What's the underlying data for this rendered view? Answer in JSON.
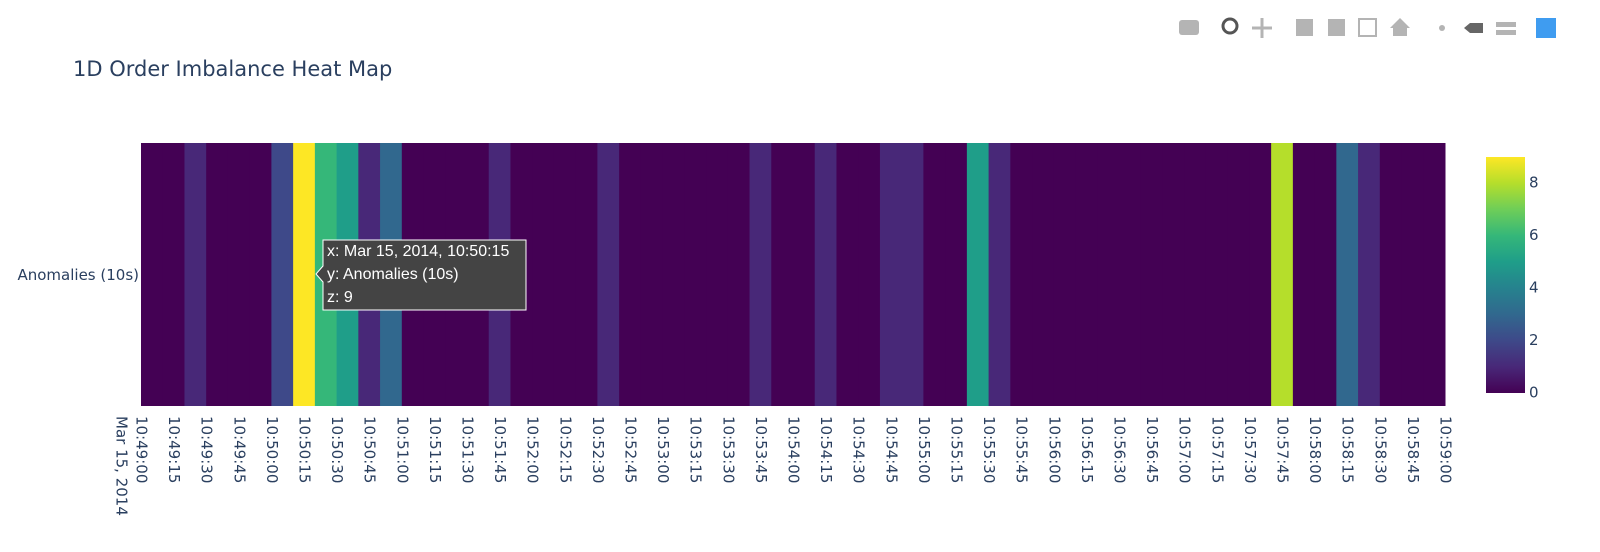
{
  "chart_data": {
    "type": "heatmap",
    "title": "1D Order Imbalance Heat Map",
    "y": [
      "Anomalies (10s)"
    ],
    "x": [
      "10:49:05",
      "10:49:15",
      "10:49:25",
      "10:49:35",
      "10:49:45",
      "10:49:55",
      "10:50:05",
      "10:50:15",
      "10:50:25",
      "10:50:35",
      "10:50:45",
      "10:50:55",
      "10:51:05",
      "10:51:15",
      "10:51:25",
      "10:51:35",
      "10:51:45",
      "10:51:55",
      "10:52:05",
      "10:52:15",
      "10:52:25",
      "10:52:35",
      "10:52:45",
      "10:52:55",
      "10:53:05",
      "10:53:15",
      "10:53:25",
      "10:53:35",
      "10:53:45",
      "10:53:55",
      "10:54:05",
      "10:54:15",
      "10:54:25",
      "10:54:35",
      "10:54:45",
      "10:54:55",
      "10:55:05",
      "10:55:15",
      "10:55:25",
      "10:55:35",
      "10:55:45",
      "10:55:55",
      "10:56:05",
      "10:56:15",
      "10:56:25",
      "10:56:35",
      "10:56:45",
      "10:56:55",
      "10:57:05",
      "10:57:15",
      "10:57:25",
      "10:57:35",
      "10:57:45",
      "10:57:55",
      "10:58:05",
      "10:58:15",
      "10:58:25",
      "10:58:35",
      "10:58:45",
      "10:58:55"
    ],
    "z": [
      [
        0,
        0,
        1,
        0,
        0,
        0,
        2,
        9,
        6,
        5,
        1,
        3,
        0,
        0,
        0,
        0,
        1,
        0,
        0,
        0,
        0,
        1,
        0,
        0,
        0,
        0,
        0,
        0,
        1,
        0,
        0,
        1,
        0,
        0,
        1,
        1,
        0,
        0,
        5,
        1,
        0,
        0,
        0,
        0,
        0,
        0,
        0,
        0,
        0,
        0,
        0,
        0,
        8,
        0,
        0,
        3,
        1,
        0,
        0,
        0
      ]
    ],
    "x_date": "Mar 15, 2014",
    "xlim": [
      "10:49:00",
      "10:59:00"
    ],
    "xticks": [
      "10:49:00",
      "10:49:15",
      "10:49:30",
      "10:49:45",
      "10:50:00",
      "10:50:15",
      "10:50:30",
      "10:50:45",
      "10:51:00",
      "10:51:15",
      "10:51:30",
      "10:51:45",
      "10:52:00",
      "10:52:15",
      "10:52:30",
      "10:52:45",
      "10:53:00",
      "10:53:15",
      "10:53:30",
      "10:53:45",
      "10:54:00",
      "10:54:15",
      "10:54:30",
      "10:54:45",
      "10:55:00",
      "10:55:15",
      "10:55:30",
      "10:55:45",
      "10:56:00",
      "10:56:15",
      "10:56:30",
      "10:56:45",
      "10:57:00",
      "10:57:15",
      "10:57:30",
      "10:57:45",
      "10:58:00",
      "10:58:15",
      "10:58:30",
      "10:58:45",
      "10:59:00"
    ],
    "zlim": [
      0,
      9
    ],
    "zticks": [
      0,
      2,
      4,
      6,
      8
    ],
    "colorscale": [
      [
        0,
        "#440154"
      ],
      [
        0.111,
        "#482878"
      ],
      [
        0.222,
        "#3e4989"
      ],
      [
        0.333,
        "#31688e"
      ],
      [
        0.444,
        "#26828e"
      ],
      [
        0.556,
        "#1f9e89"
      ],
      [
        0.667,
        "#35b779"
      ],
      [
        0.778,
        "#6ece58"
      ],
      [
        0.889,
        "#b5de2b"
      ],
      [
        1,
        "#fde725"
      ]
    ],
    "hover": [
      "x: Mar 15, 2014, 10:50:15",
      "y: Anomalies (10s)",
      "z: 9"
    ]
  }
}
